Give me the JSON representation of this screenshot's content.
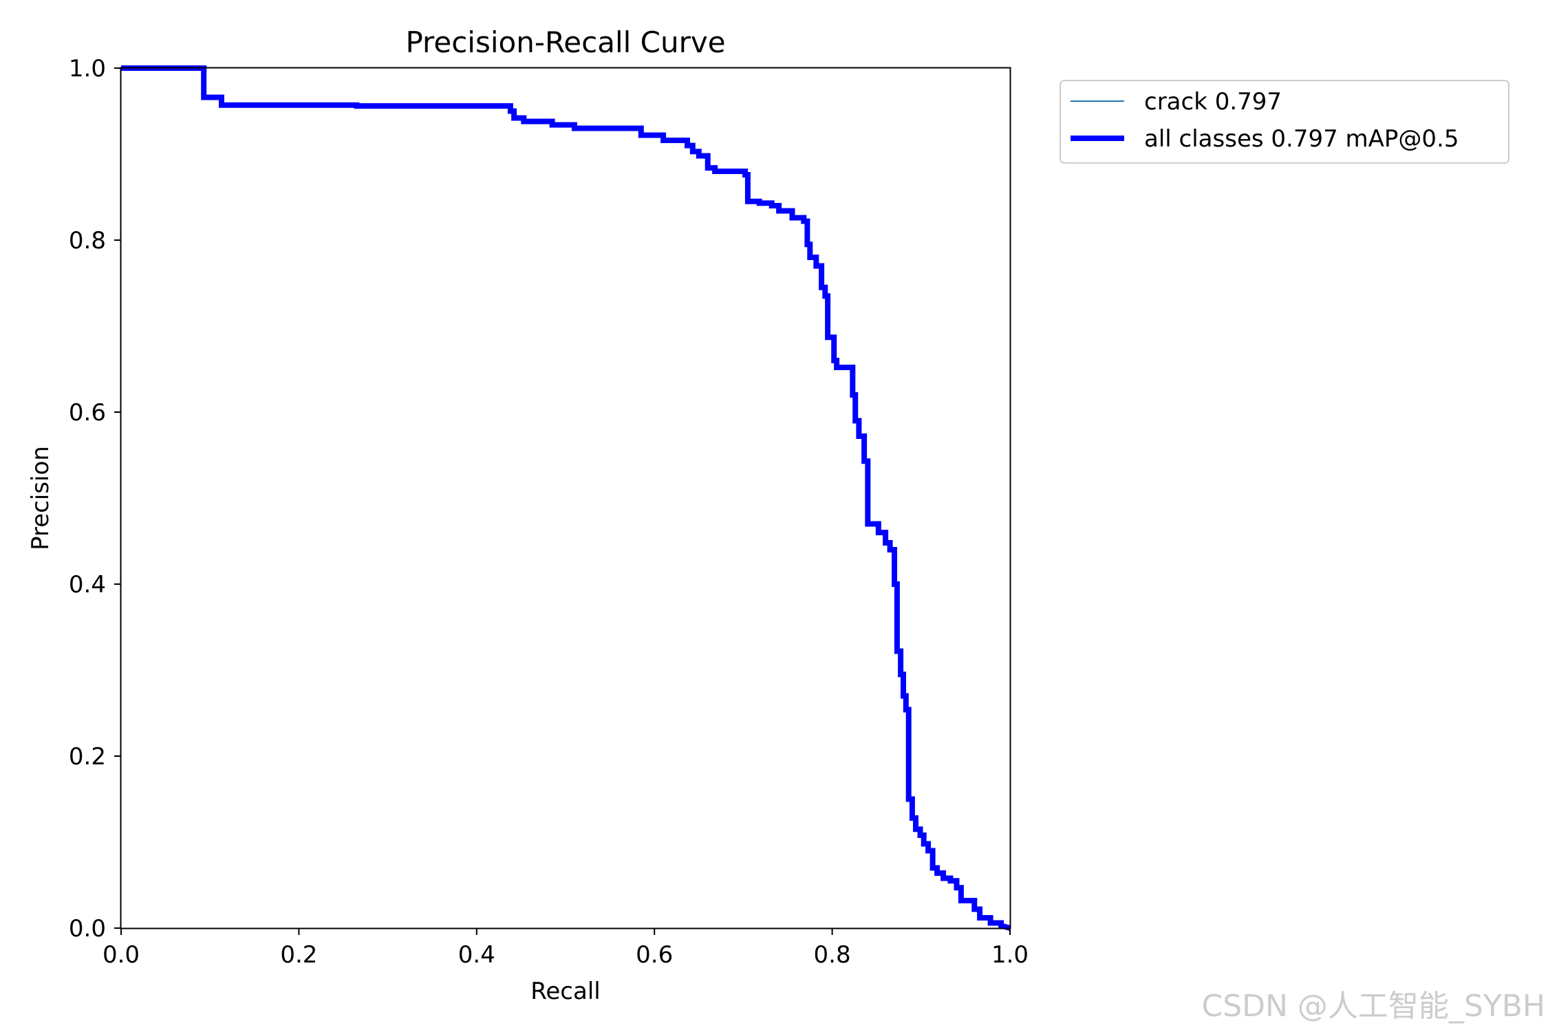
{
  "chart_data": {
    "type": "line",
    "title": "Precision-Recall Curve",
    "xlabel": "Recall",
    "ylabel": "Precision",
    "xlim": [
      0,
      1
    ],
    "ylim": [
      0,
      1
    ],
    "xticks": [
      "0.0",
      "0.2",
      "0.4",
      "0.6",
      "0.8",
      "1.0"
    ],
    "yticks": [
      "0.0",
      "0.2",
      "0.4",
      "0.6",
      "0.8",
      "1.0"
    ],
    "grid": false,
    "legend_position": "outside-top-right",
    "series": [
      {
        "name": "crack 0.797",
        "color": "#1f77b4",
        "points": [
          [
            0,
            1.0
          ],
          [
            0.093,
            1.0
          ],
          [
            0.093,
            0.966
          ],
          [
            0.113,
            0.966
          ],
          [
            0.113,
            0.957
          ],
          [
            0.265,
            0.957
          ],
          [
            0.265,
            0.956
          ],
          [
            0.438,
            0.956
          ],
          [
            0.438,
            0.95
          ],
          [
            0.442,
            0.95
          ],
          [
            0.442,
            0.942
          ],
          [
            0.453,
            0.942
          ],
          [
            0.453,
            0.938
          ],
          [
            0.485,
            0.938
          ],
          [
            0.485,
            0.934
          ],
          [
            0.51,
            0.934
          ],
          [
            0.51,
            0.93
          ],
          [
            0.585,
            0.93
          ],
          [
            0.585,
            0.922
          ],
          [
            0.61,
            0.922
          ],
          [
            0.61,
            0.916
          ],
          [
            0.637,
            0.916
          ],
          [
            0.637,
            0.91
          ],
          [
            0.643,
            0.91
          ],
          [
            0.643,
            0.903
          ],
          [
            0.65,
            0.903
          ],
          [
            0.65,
            0.898
          ],
          [
            0.66,
            0.898
          ],
          [
            0.66,
            0.884
          ],
          [
            0.668,
            0.884
          ],
          [
            0.668,
            0.88
          ],
          [
            0.702,
            0.88
          ],
          [
            0.702,
            0.876
          ],
          [
            0.705,
            0.876
          ],
          [
            0.705,
            0.845
          ],
          [
            0.718,
            0.845
          ],
          [
            0.718,
            0.843
          ],
          [
            0.732,
            0.843
          ],
          [
            0.732,
            0.84
          ],
          [
            0.74,
            0.84
          ],
          [
            0.74,
            0.834
          ],
          [
            0.755,
            0.834
          ],
          [
            0.755,
            0.826
          ],
          [
            0.768,
            0.826
          ],
          [
            0.768,
            0.822
          ],
          [
            0.772,
            0.822
          ],
          [
            0.772,
            0.795
          ],
          [
            0.775,
            0.795
          ],
          [
            0.775,
            0.78
          ],
          [
            0.782,
            0.78
          ],
          [
            0.782,
            0.77
          ],
          [
            0.788,
            0.77
          ],
          [
            0.788,
            0.745
          ],
          [
            0.792,
            0.745
          ],
          [
            0.792,
            0.735
          ],
          [
            0.795,
            0.735
          ],
          [
            0.795,
            0.687
          ],
          [
            0.802,
            0.687
          ],
          [
            0.802,
            0.66
          ],
          [
            0.805,
            0.66
          ],
          [
            0.805,
            0.652
          ],
          [
            0.823,
            0.652
          ],
          [
            0.823,
            0.62
          ],
          [
            0.826,
            0.62
          ],
          [
            0.826,
            0.59
          ],
          [
            0.83,
            0.59
          ],
          [
            0.83,
            0.572
          ],
          [
            0.836,
            0.572
          ],
          [
            0.836,
            0.543
          ],
          [
            0.84,
            0.543
          ],
          [
            0.84,
            0.47
          ],
          [
            0.852,
            0.47
          ],
          [
            0.852,
            0.46
          ],
          [
            0.86,
            0.46
          ],
          [
            0.86,
            0.448
          ],
          [
            0.865,
            0.448
          ],
          [
            0.865,
            0.44
          ],
          [
            0.87,
            0.44
          ],
          [
            0.87,
            0.4
          ],
          [
            0.873,
            0.4
          ],
          [
            0.873,
            0.322
          ],
          [
            0.877,
            0.322
          ],
          [
            0.877,
            0.295
          ],
          [
            0.88,
            0.295
          ],
          [
            0.88,
            0.27
          ],
          [
            0.883,
            0.27
          ],
          [
            0.883,
            0.254
          ],
          [
            0.886,
            0.254
          ],
          [
            0.886,
            0.15
          ],
          [
            0.89,
            0.15
          ],
          [
            0.89,
            0.128
          ],
          [
            0.894,
            0.128
          ],
          [
            0.894,
            0.115
          ],
          [
            0.899,
            0.115
          ],
          [
            0.899,
            0.108
          ],
          [
            0.903,
            0.108
          ],
          [
            0.903,
            0.098
          ],
          [
            0.908,
            0.098
          ],
          [
            0.908,
            0.09
          ],
          [
            0.913,
            0.09
          ],
          [
            0.913,
            0.07
          ],
          [
            0.918,
            0.07
          ],
          [
            0.918,
            0.064
          ],
          [
            0.925,
            0.064
          ],
          [
            0.925,
            0.058
          ],
          [
            0.933,
            0.058
          ],
          [
            0.933,
            0.055
          ],
          [
            0.94,
            0.055
          ],
          [
            0.94,
            0.047
          ],
          [
            0.945,
            0.047
          ],
          [
            0.945,
            0.032
          ],
          [
            0.96,
            0.032
          ],
          [
            0.96,
            0.022
          ],
          [
            0.966,
            0.022
          ],
          [
            0.966,
            0.012
          ],
          [
            0.978,
            0.012
          ],
          [
            0.978,
            0.006
          ],
          [
            0.99,
            0.006
          ],
          [
            0.99,
            0.003
          ],
          [
            1.0,
            0.0
          ]
        ]
      },
      {
        "name": "all classes 0.797 mAP@0.5",
        "color": "#0000ff",
        "points": [
          [
            0,
            1.0
          ],
          [
            0.093,
            1.0
          ],
          [
            0.093,
            0.966
          ],
          [
            0.113,
            0.966
          ],
          [
            0.113,
            0.957
          ],
          [
            0.265,
            0.957
          ],
          [
            0.265,
            0.956
          ],
          [
            0.438,
            0.956
          ],
          [
            0.438,
            0.95
          ],
          [
            0.442,
            0.95
          ],
          [
            0.442,
            0.942
          ],
          [
            0.453,
            0.942
          ],
          [
            0.453,
            0.938
          ],
          [
            0.485,
            0.938
          ],
          [
            0.485,
            0.934
          ],
          [
            0.51,
            0.934
          ],
          [
            0.51,
            0.93
          ],
          [
            0.585,
            0.93
          ],
          [
            0.585,
            0.922
          ],
          [
            0.61,
            0.922
          ],
          [
            0.61,
            0.916
          ],
          [
            0.637,
            0.916
          ],
          [
            0.637,
            0.91
          ],
          [
            0.643,
            0.91
          ],
          [
            0.643,
            0.903
          ],
          [
            0.65,
            0.903
          ],
          [
            0.65,
            0.898
          ],
          [
            0.66,
            0.898
          ],
          [
            0.66,
            0.884
          ],
          [
            0.668,
            0.884
          ],
          [
            0.668,
            0.88
          ],
          [
            0.702,
            0.88
          ],
          [
            0.702,
            0.876
          ],
          [
            0.705,
            0.876
          ],
          [
            0.705,
            0.845
          ],
          [
            0.718,
            0.845
          ],
          [
            0.718,
            0.843
          ],
          [
            0.732,
            0.843
          ],
          [
            0.732,
            0.84
          ],
          [
            0.74,
            0.84
          ],
          [
            0.74,
            0.834
          ],
          [
            0.755,
            0.834
          ],
          [
            0.755,
            0.826
          ],
          [
            0.768,
            0.826
          ],
          [
            0.768,
            0.822
          ],
          [
            0.772,
            0.822
          ],
          [
            0.772,
            0.795
          ],
          [
            0.775,
            0.795
          ],
          [
            0.775,
            0.78
          ],
          [
            0.782,
            0.78
          ],
          [
            0.782,
            0.77
          ],
          [
            0.788,
            0.77
          ],
          [
            0.788,
            0.745
          ],
          [
            0.792,
            0.745
          ],
          [
            0.792,
            0.735
          ],
          [
            0.795,
            0.735
          ],
          [
            0.795,
            0.687
          ],
          [
            0.802,
            0.687
          ],
          [
            0.802,
            0.66
          ],
          [
            0.805,
            0.66
          ],
          [
            0.805,
            0.652
          ],
          [
            0.823,
            0.652
          ],
          [
            0.823,
            0.62
          ],
          [
            0.826,
            0.62
          ],
          [
            0.826,
            0.59
          ],
          [
            0.83,
            0.59
          ],
          [
            0.83,
            0.572
          ],
          [
            0.836,
            0.572
          ],
          [
            0.836,
            0.543
          ],
          [
            0.84,
            0.543
          ],
          [
            0.84,
            0.47
          ],
          [
            0.852,
            0.47
          ],
          [
            0.852,
            0.46
          ],
          [
            0.86,
            0.46
          ],
          [
            0.86,
            0.448
          ],
          [
            0.865,
            0.448
          ],
          [
            0.865,
            0.44
          ],
          [
            0.87,
            0.44
          ],
          [
            0.87,
            0.4
          ],
          [
            0.873,
            0.4
          ],
          [
            0.873,
            0.322
          ],
          [
            0.877,
            0.322
          ],
          [
            0.877,
            0.295
          ],
          [
            0.88,
            0.295
          ],
          [
            0.88,
            0.27
          ],
          [
            0.883,
            0.27
          ],
          [
            0.883,
            0.254
          ],
          [
            0.886,
            0.254
          ],
          [
            0.886,
            0.15
          ],
          [
            0.89,
            0.15
          ],
          [
            0.89,
            0.128
          ],
          [
            0.894,
            0.128
          ],
          [
            0.894,
            0.115
          ],
          [
            0.899,
            0.115
          ],
          [
            0.899,
            0.108
          ],
          [
            0.903,
            0.108
          ],
          [
            0.903,
            0.098
          ],
          [
            0.908,
            0.098
          ],
          [
            0.908,
            0.09
          ],
          [
            0.913,
            0.09
          ],
          [
            0.913,
            0.07
          ],
          [
            0.918,
            0.07
          ],
          [
            0.918,
            0.064
          ],
          [
            0.925,
            0.064
          ],
          [
            0.925,
            0.058
          ],
          [
            0.933,
            0.058
          ],
          [
            0.933,
            0.055
          ],
          [
            0.94,
            0.055
          ],
          [
            0.94,
            0.047
          ],
          [
            0.945,
            0.047
          ],
          [
            0.945,
            0.032
          ],
          [
            0.96,
            0.032
          ],
          [
            0.96,
            0.022
          ],
          [
            0.966,
            0.022
          ],
          [
            0.966,
            0.012
          ],
          [
            0.978,
            0.012
          ],
          [
            0.978,
            0.006
          ],
          [
            0.99,
            0.006
          ],
          [
            0.99,
            0.003
          ],
          [
            1.0,
            0.0
          ]
        ]
      }
    ]
  },
  "watermark": "CSDN @人工智能_SYBH"
}
